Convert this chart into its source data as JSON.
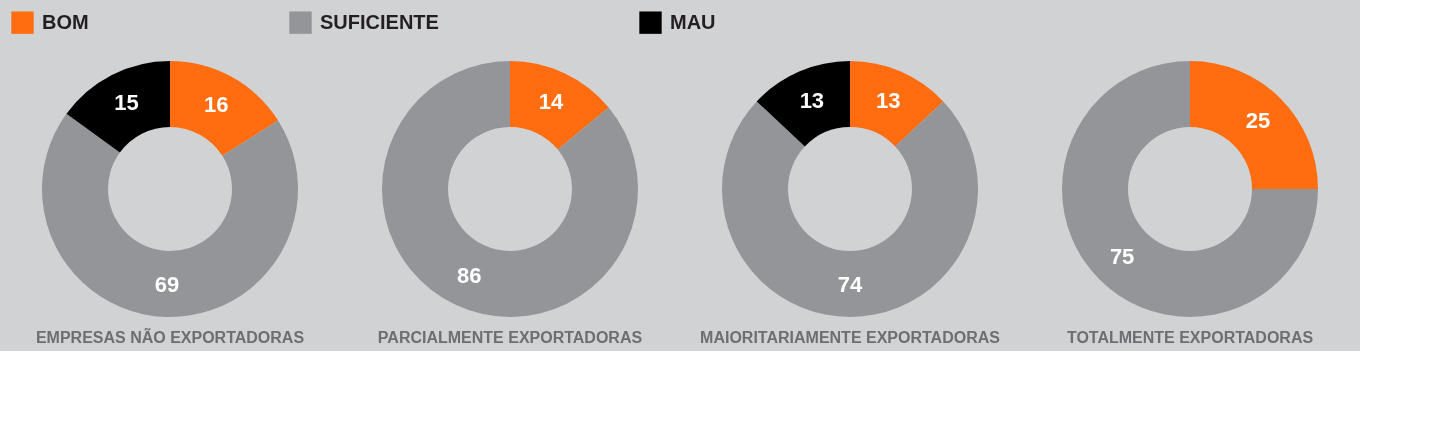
{
  "chart_data": [
    {
      "type": "donut",
      "title": "EMPRESAS NÃO EXPORTADORAS",
      "categories": [
        "BOM",
        "SUFICIENTE",
        "MAU"
      ],
      "values": [
        16,
        69,
        15
      ],
      "colors": [
        "#ff6d10",
        "#939598",
        "#000000"
      ],
      "data_labels": true,
      "legend": "top"
    },
    {
      "type": "donut",
      "title": "PARCIALMENTE EXPORTADORAS",
      "categories": [
        null,
        null
      ],
      "values": [
        14,
        86
      ],
      "colors": [
        "#ff6d10",
        "#939598"
      ],
      "data_labels": true
    },
    {
      "type": "donut",
      "title": "MAIORITARIAMENTE EXPORTADORAS",
      "categories": [
        null,
        null,
        null
      ],
      "values": [
        13,
        74,
        13
      ],
      "colors": [
        "#ff6d10",
        "#939598",
        "#000000"
      ],
      "data_labels": true
    },
    {
      "type": "donut",
      "title": "TOTALMENTE EXPORTADORAS",
      "categories": [
        null,
        null
      ],
      "values": [
        25,
        75
      ],
      "colors": [
        "#ff6d10",
        "#939598"
      ],
      "data_labels": true
    }
  ]
}
